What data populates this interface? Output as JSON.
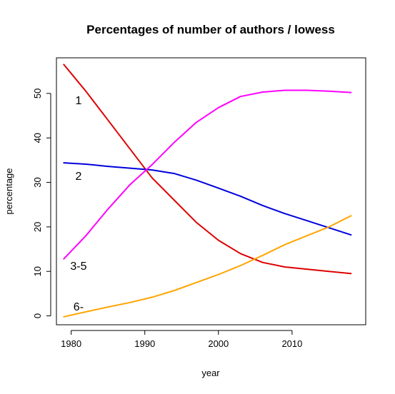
{
  "chart_data": {
    "type": "line",
    "title": "Percentages of number of authors / lowess",
    "xlabel": "year",
    "ylabel": "percentage",
    "xlim": [
      1978,
      2020
    ],
    "ylim": [
      -2,
      58
    ],
    "xticks": [
      1980,
      1990,
      2000,
      2010
    ],
    "yticks": [
      0,
      10,
      20,
      30,
      40,
      50
    ],
    "grid": false,
    "legend": "none",
    "series": [
      {
        "name": "1",
        "color": "#dd0000",
        "label_at": [
          1981,
          48.5
        ],
        "x": [
          1979,
          1982,
          1985,
          1988,
          1991,
          1994,
          1997,
          2000,
          2003,
          2006,
          2009,
          2012,
          2015,
          2018
        ],
        "y": [
          56.5,
          50.5,
          44.0,
          37.5,
          31.0,
          26.0,
          21.0,
          17.0,
          14.0,
          12.0,
          11.0,
          10.5,
          10.0,
          9.5
        ]
      },
      {
        "name": "2",
        "color": "#0000dd",
        "label_at": [
          1981,
          31.5
        ],
        "x": [
          1979,
          1982,
          1985,
          1988,
          1991,
          1994,
          1997,
          2000,
          2003,
          2006,
          2009,
          2012,
          2015,
          2018
        ],
        "y": [
          34.4,
          34.1,
          33.6,
          33.2,
          32.8,
          32.0,
          30.5,
          28.7,
          26.9,
          24.8,
          23.0,
          21.4,
          19.8,
          18.2
        ]
      },
      {
        "name": "3-5",
        "color": "#ff00ff",
        "label_at": [
          1981,
          11.3
        ],
        "x": [
          1979,
          1982,
          1985,
          1988,
          1991,
          1994,
          1997,
          2000,
          2003,
          2006,
          2009,
          2012,
          2015,
          2018
        ],
        "y": [
          12.8,
          18.0,
          24.0,
          29.5,
          34.0,
          39.0,
          43.5,
          46.8,
          49.3,
          50.3,
          50.7,
          50.7,
          50.5,
          50.2
        ]
      },
      {
        "name": "6-",
        "color": "#ffa500",
        "label_at": [
          1981,
          2.2
        ],
        "x": [
          1979,
          1982,
          1985,
          1988,
          1991,
          1994,
          1997,
          2000,
          2003,
          2006,
          2009,
          2012,
          2015,
          2018
        ],
        "y": [
          -0.2,
          0.9,
          2.0,
          3.0,
          4.2,
          5.7,
          7.5,
          9.3,
          11.3,
          13.6,
          16.0,
          18.0,
          20.0,
          22.5
        ]
      }
    ]
  }
}
